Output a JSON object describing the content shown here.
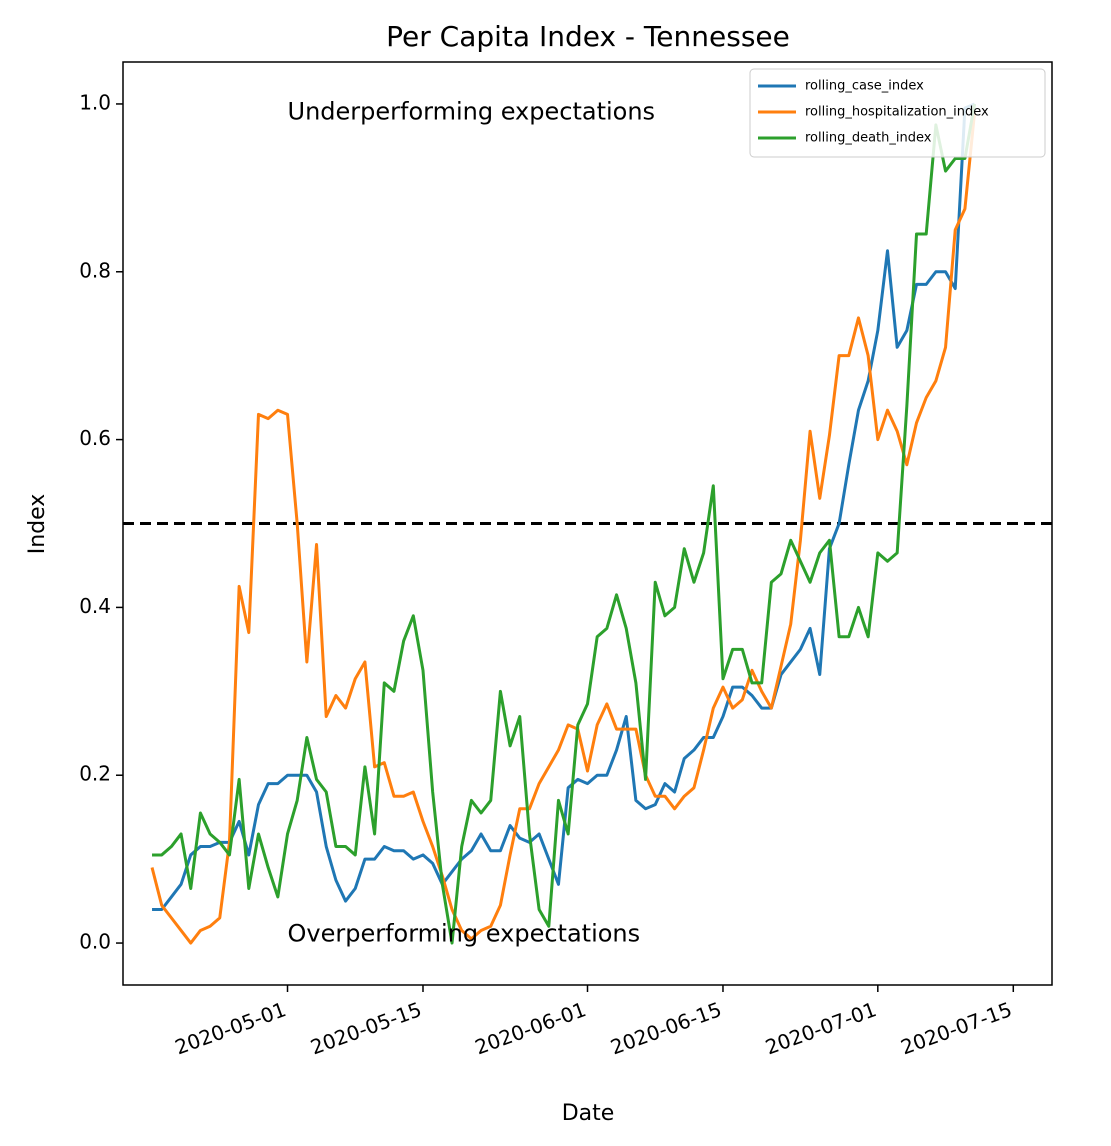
{
  "chart_data": {
    "type": "line",
    "title": "Per Capita Index - Tennessee",
    "xlabel": "Date",
    "ylabel": "Index",
    "x_start": "2020-04-17",
    "x_range": [
      "2020-04-14",
      "2020-07-19"
    ],
    "ylim": [
      -0.05,
      1.05
    ],
    "grid": false,
    "legend_position": "top-right",
    "x_ticks": [
      "2020-05-01",
      "2020-05-15",
      "2020-06-01",
      "2020-06-15",
      "2020-07-01",
      "2020-07-15"
    ],
    "y_ticks": [
      "0.0",
      "0.2",
      "0.4",
      "0.6",
      "0.8",
      "1.0"
    ],
    "reference_line": {
      "y": 0.5,
      "style": "dashed",
      "color": "#000000"
    },
    "annotations": [
      {
        "text": "Underperforming expectations",
        "x": "2020-05-01",
        "y": 0.99
      },
      {
        "text": "Overperforming expectations",
        "x": "2020-05-01",
        "y": 0.01
      }
    ],
    "series": [
      {
        "name": "rolling_case_index",
        "color": "#1f77b4",
        "values": [
          0.04,
          0.04,
          0.055,
          0.07,
          0.105,
          0.115,
          0.115,
          0.12,
          0.12,
          0.145,
          0.105,
          0.165,
          0.19,
          0.19,
          0.2,
          0.2,
          0.2,
          0.18,
          0.115,
          0.075,
          0.05,
          0.065,
          0.1,
          0.1,
          0.115,
          0.11,
          0.11,
          0.1,
          0.105,
          0.095,
          0.07,
          0.085,
          0.1,
          0.11,
          0.13,
          0.11,
          0.11,
          0.14,
          0.125,
          0.12,
          0.13,
          0.1,
          0.07,
          0.185,
          0.195,
          0.19,
          0.2,
          0.2,
          0.23,
          0.27,
          0.17,
          0.16,
          0.165,
          0.19,
          0.18,
          0.22,
          0.23,
          0.245,
          0.245,
          0.27,
          0.305,
          0.305,
          0.295,
          0.28,
          0.28,
          0.32,
          0.335,
          0.35,
          0.375,
          0.32,
          0.47,
          0.5,
          0.57,
          0.635,
          0.67,
          0.73,
          0.825,
          0.71,
          0.73,
          0.785,
          0.785,
          0.8,
          0.8,
          0.78,
          0.995,
          1.0
        ]
      },
      {
        "name": "rolling_hospitalization_index",
        "color": "#ff7f0e",
        "values": [
          0.09,
          0.045,
          0.03,
          0.015,
          0.0,
          0.015,
          0.02,
          0.03,
          0.12,
          0.425,
          0.37,
          0.63,
          0.625,
          0.635,
          0.63,
          0.5,
          0.335,
          0.475,
          0.27,
          0.295,
          0.28,
          0.315,
          0.335,
          0.21,
          0.215,
          0.175,
          0.175,
          0.18,
          0.145,
          0.115,
          0.08,
          0.04,
          0.015,
          0.005,
          0.015,
          0.02,
          0.045,
          0.105,
          0.16,
          0.16,
          0.19,
          0.21,
          0.23,
          0.26,
          0.255,
          0.205,
          0.26,
          0.285,
          0.255,
          0.255,
          0.255,
          0.2,
          0.175,
          0.175,
          0.16,
          0.175,
          0.185,
          0.23,
          0.28,
          0.305,
          0.28,
          0.29,
          0.325,
          0.3,
          0.28,
          0.33,
          0.38,
          0.48,
          0.61,
          0.53,
          0.605,
          0.7,
          0.7,
          0.745,
          0.7,
          0.6,
          0.635,
          0.61,
          0.57,
          0.62,
          0.65,
          0.67,
          0.71,
          0.85,
          0.875,
          0.99
        ]
      },
      {
        "name": "rolling_death_index",
        "color": "#2ca02c",
        "values": [
          0.105,
          0.105,
          0.115,
          0.13,
          0.065,
          0.155,
          0.13,
          0.12,
          0.105,
          0.195,
          0.065,
          0.13,
          0.09,
          0.055,
          0.13,
          0.17,
          0.245,
          0.195,
          0.18,
          0.115,
          0.115,
          0.105,
          0.21,
          0.13,
          0.31,
          0.3,
          0.36,
          0.39,
          0.325,
          0.18,
          0.07,
          0.0,
          0.115,
          0.17,
          0.155,
          0.17,
          0.3,
          0.235,
          0.27,
          0.13,
          0.04,
          0.02,
          0.17,
          0.13,
          0.26,
          0.285,
          0.365,
          0.375,
          0.415,
          0.375,
          0.31,
          0.195,
          0.43,
          0.39,
          0.4,
          0.47,
          0.43,
          0.465,
          0.545,
          0.315,
          0.35,
          0.35,
          0.31,
          0.31,
          0.43,
          0.44,
          0.48,
          0.455,
          0.43,
          0.465,
          0.48,
          0.365,
          0.365,
          0.4,
          0.365,
          0.465,
          0.455,
          0.465,
          0.64,
          0.845,
          0.845,
          0.975,
          0.92,
          0.935,
          0.935,
          1.0
        ]
      }
    ]
  }
}
